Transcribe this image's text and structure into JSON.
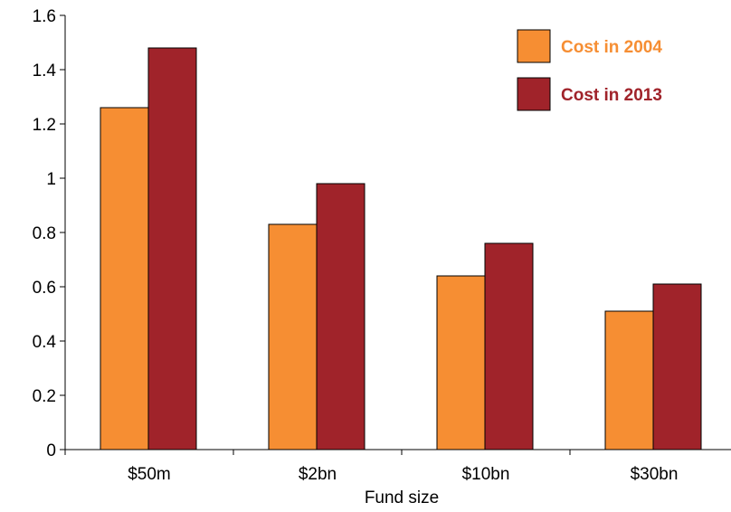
{
  "chart_data": {
    "type": "bar",
    "title": "",
    "xlabel": "Fund size",
    "ylabel": "",
    "categories": [
      "$50m",
      "$2bn",
      "$10bn",
      "$30bn"
    ],
    "series": [
      {
        "name": "Cost in 2004",
        "values": [
          1.26,
          0.83,
          0.64,
          0.51
        ],
        "color": "#F68E33"
      },
      {
        "name": "Cost in 2013",
        "values": [
          1.48,
          0.98,
          0.76,
          0.61
        ],
        "color": "#A0232A"
      }
    ],
    "ylim": [
      0,
      1.6
    ],
    "yticks": [
      "0",
      "0.2",
      "0.4",
      "0.6",
      "0.8",
      "1",
      "1.2",
      "1.4",
      "1.6"
    ],
    "grid": false,
    "legend_position": "top-right"
  }
}
